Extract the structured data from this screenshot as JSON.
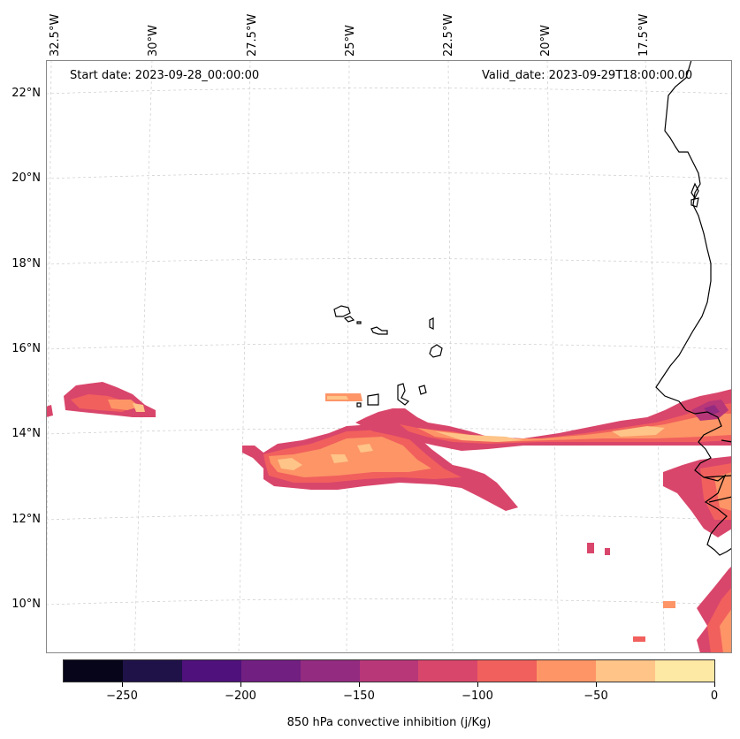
{
  "map": {
    "start_date": "Start date: 2023-09-28_00:00:00",
    "valid_date": "Valid_date: 2023-09-29T18:00:00.00",
    "longitude_labels": [
      "32.5°W",
      "30°W",
      "27.5°W",
      "25°W",
      "22.5°W",
      "20°W",
      "17.5°W"
    ],
    "latitude_labels": [
      "22°N",
      "20°N",
      "18°N",
      "16°N",
      "14°N",
      "12°N",
      "10°N"
    ],
    "field": "850 hPa convective inhibition",
    "region": "Cape Verde Islands and West African coast",
    "gridlines": "dashed light grey",
    "land_outline_color": "#000000"
  },
  "colorbar": {
    "label": "850 hPa convective inhibition (j/Kg)",
    "ticks": [
      "−250",
      "−200",
      "−150",
      "−100",
      "−50",
      "0"
    ],
    "colors": [
      "#06051a",
      "#1f1249",
      "#4f117b",
      "#711f81",
      "#932b80",
      "#b73779",
      "#d9466b",
      "#f1605d",
      "#fd9567",
      "#fec488",
      "#fde8a4"
    ]
  }
}
